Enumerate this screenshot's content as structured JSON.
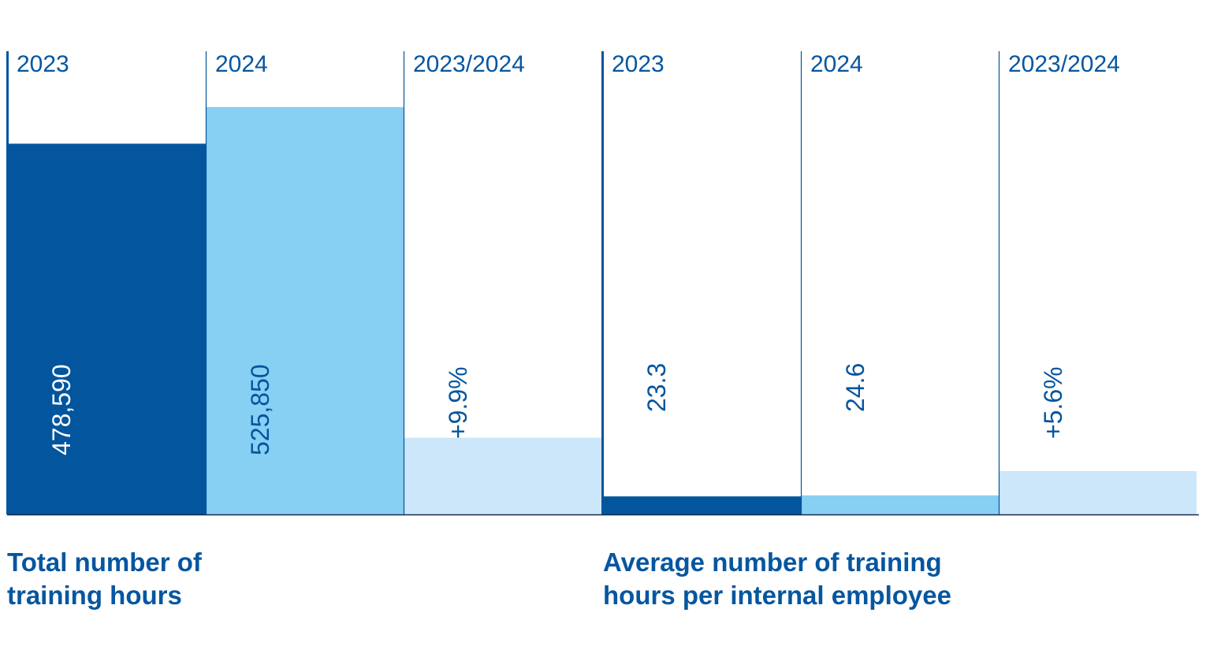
{
  "colors": {
    "dark_blue": "#03559e",
    "mid_blue": "#88cff4",
    "light_blue": "#cbe7f9",
    "text_blue": "#0656a0"
  },
  "chart_data": [
    {
      "type": "bar",
      "title": "Total number of training hours",
      "categories": [
        "2023",
        "2024",
        "2023/2024"
      ],
      "values": [
        478590,
        525850,
        9.9
      ],
      "labels": [
        "478,590",
        "525,850",
        "+9.9%"
      ],
      "colors": [
        "#03559e",
        "#88cff4",
        "#cbe7f9"
      ],
      "label_colors": [
        "#ffffff",
        "#03559e",
        "#03559e"
      ],
      "ylim": [
        0,
        600000
      ],
      "change_ylim": [
        0,
        60
      ],
      "grid": false
    },
    {
      "type": "bar",
      "title": "Average number of training hours per internal employee",
      "categories": [
        "2023",
        "2024",
        "2023/2024"
      ],
      "values": [
        23.3,
        24.6,
        5.6
      ],
      "labels": [
        "23.3",
        "24.6",
        "+5.6%"
      ],
      "colors": [
        "#03559e",
        "#88cff4",
        "#cbe7f9"
      ],
      "label_colors": [
        "#03559e",
        "#03559e",
        "#03559e"
      ],
      "ylim": [
        0,
        600
      ],
      "change_ylim": [
        0,
        60
      ],
      "grid": false
    }
  ]
}
